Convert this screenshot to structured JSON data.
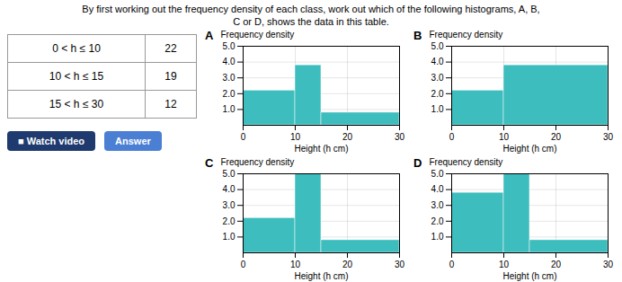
{
  "table": {
    "rows": [
      [
        "0 < h ≤ 10",
        "22"
      ],
      [
        "10 < h ≤ 15",
        "19"
      ],
      [
        "15 < h ≤ 30",
        "12"
      ]
    ]
  },
  "text": [
    "By first working out the frequency density of each class, work out which of the following histograms, A, B,",
    "C or D, shows the data in this table."
  ],
  "buttons": [
    {
      "text": "■ Watch video",
      "color": "#1e3a6e"
    },
    {
      "text": "Answer",
      "color": "#4a7fd4"
    }
  ],
  "chart_data": [
    {
      "type": "histogram",
      "title": "A",
      "bins": [
        0,
        10,
        15,
        30
      ],
      "values": [
        2.2,
        3.8,
        0.8
      ],
      "color": "#3dbdbd",
      "x_label": "Height (h cm)",
      "y_label": "Frequency density",
      "xlim": [
        0,
        30
      ],
      "xticks": [
        0,
        10,
        20,
        30
      ],
      "ylim": [
        0,
        5
      ],
      "yticks": [
        1,
        2,
        3,
        4,
        5
      ],
      "grid": true
    },
    {
      "type": "histogram",
      "title": "B",
      "bins": [
        0,
        10,
        30
      ],
      "values": [
        2.2,
        3.8
      ],
      "color": "#3dbdbd",
      "x_label": "Height (h cm)",
      "y_label": "Frequency density",
      "xlim": [
        0,
        30
      ],
      "xticks": [
        0,
        10,
        20,
        30
      ],
      "ylim": [
        0,
        5
      ],
      "yticks": [
        1,
        2,
        3,
        4,
        5
      ],
      "grid": true
    },
    {
      "type": "histogram",
      "title": "C",
      "bins": [
        0,
        10,
        15,
        30
      ],
      "values": [
        2.2,
        5.0,
        0.8
      ],
      "color": "#3dbdbd",
      "x_label": "Height (h cm)",
      "y_label": "Frequency density",
      "xlim": [
        0,
        30
      ],
      "xticks": [
        0,
        10,
        20,
        30
      ],
      "ylim": [
        0,
        5
      ],
      "yticks": [
        1,
        2,
        3,
        4,
        5
      ],
      "grid": true
    },
    {
      "type": "histogram",
      "title": "D",
      "bins": [
        0,
        10,
        15,
        30
      ],
      "values": [
        3.8,
        5.0,
        0.8
      ],
      "color": "#3dbdbd",
      "x_label": "Height (h cm)",
      "y_label": "Frequency density",
      "xlim": [
        0,
        30
      ],
      "xticks": [
        0,
        10,
        20,
        30
      ],
      "ylim": [
        0,
        5
      ],
      "yticks": [
        1,
        2,
        3,
        4,
        5
      ],
      "grid": true
    }
  ]
}
